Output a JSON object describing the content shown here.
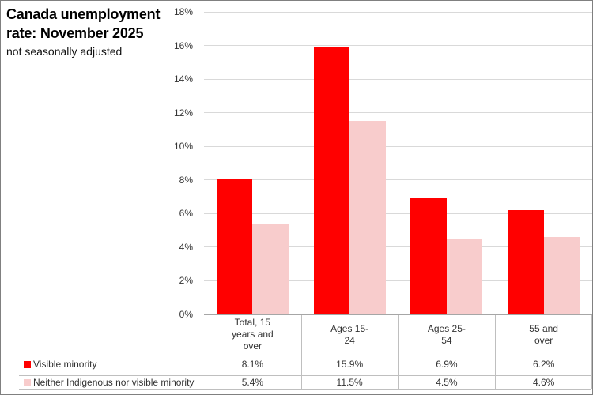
{
  "title": {
    "line1": "Canada unemployment",
    "line2": "rate: November 2025",
    "subtitle": "not seasonally adjusted"
  },
  "chart_data": {
    "type": "bar",
    "title": "Canada unemployment rate: November 2025",
    "subtitle": "not seasonally adjusted",
    "categories": [
      "Total, 15 years and over",
      "Ages 15-24",
      "Ages 25-54",
      "55 and over"
    ],
    "category_lines": [
      [
        "Total, 15",
        "years and",
        "over"
      ],
      [
        "Ages 15-",
        "24"
      ],
      [
        "Ages 25-",
        "54"
      ],
      [
        "55 and",
        "over"
      ]
    ],
    "series": [
      {
        "name": "Visible minority",
        "color": "#ff0000",
        "values": [
          8.1,
          15.9,
          6.9,
          6.2
        ],
        "value_labels": [
          "8.1%",
          "15.9%",
          "6.9%",
          "6.2%"
        ]
      },
      {
        "name": "Neither Indigenous nor visible minority",
        "color": "#f8cccc",
        "values": [
          5.4,
          11.5,
          4.5,
          4.6
        ],
        "value_labels": [
          "5.4%",
          "11.5%",
          "4.5%",
          "4.6%"
        ]
      }
    ],
    "ylim": [
      0,
      18
    ],
    "ytick_step": 2,
    "ytick_labels": [
      "0%",
      "2%",
      "4%",
      "6%",
      "8%",
      "10%",
      "12%",
      "14%",
      "16%",
      "18%"
    ],
    "grid": true,
    "legend_position": "bottom-left-table",
    "colors": {
      "gridline": "#d9d9d9",
      "axis_line": "#a6a6a6",
      "table_line": "#bfbfbf",
      "label_text": "#333333",
      "title_text": "#000000"
    }
  }
}
